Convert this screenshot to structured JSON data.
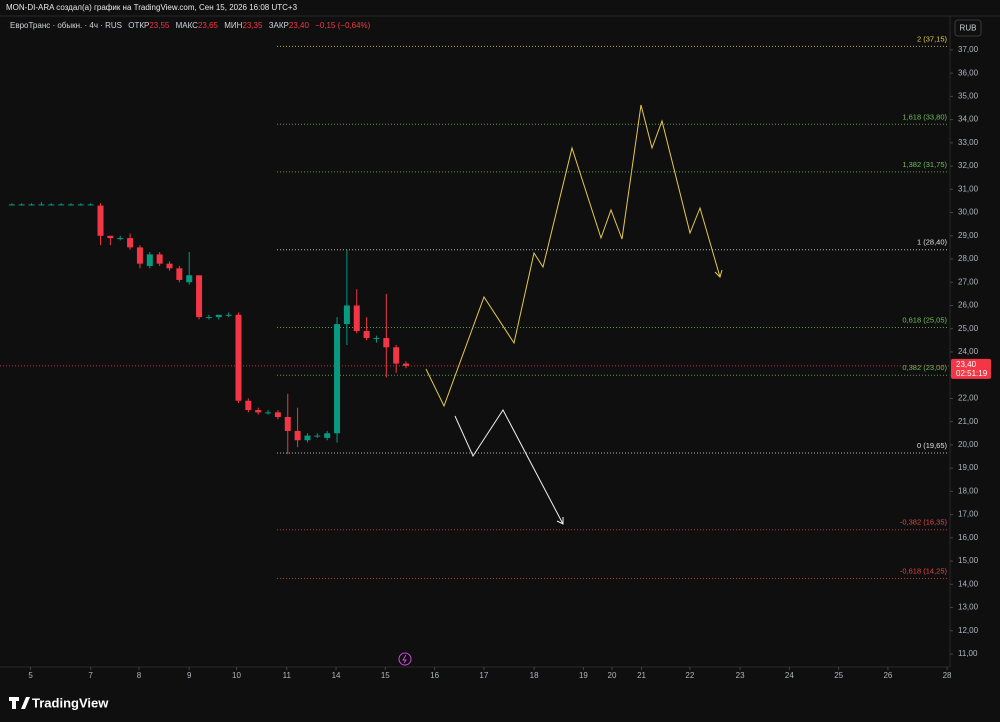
{
  "header": {
    "title": "MON-DI-ARA создал(а) график на TradingView.com, Сен 15, 2026 16:08 UTC+3"
  },
  "footer": {
    "brand": "TradingView"
  },
  "chart_data": {
    "type": "candlestick",
    "legend": {
      "symbol": "ЕвроТранс · обыкн. · 4ч · RUS",
      "open_label": "ОТКР",
      "open": "23,55",
      "high_label": "МАКС",
      "high": "23,65",
      "low_label": "МИН",
      "low": "23,35",
      "close_label": "ЗАКР",
      "close": "23,40",
      "change": "−0,15 (−0,64%)"
    },
    "currency": "RUB",
    "up_color": "#089981",
    "down_color": "#f23645",
    "open": [
      30.35,
      30.35,
      30.35,
      30.35,
      30.35,
      30.35,
      30.35,
      30.35,
      30.35,
      30.3,
      29.0,
      28.9,
      28.9,
      28.5,
      27.7,
      28.2,
      27.8,
      27.6,
      27.0,
      27.3,
      25.5,
      25.5,
      25.6,
      25.6,
      21.9,
      21.5,
      21.4,
      21.4,
      21.2,
      20.6,
      20.2,
      20.4,
      20.3,
      20.5,
      25.2,
      26.0,
      24.9,
      24.6,
      24.6,
      24.2,
      23.5
    ],
    "high": [
      30.4,
      30.4,
      30.4,
      30.45,
      30.4,
      30.4,
      30.4,
      30.4,
      30.4,
      30.4,
      29.0,
      29.0,
      29.1,
      28.6,
      28.3,
      28.3,
      27.9,
      27.7,
      28.3,
      27.3,
      25.6,
      25.6,
      25.7,
      25.7,
      22.0,
      21.6,
      21.5,
      21.5,
      22.2,
      21.6,
      20.5,
      20.5,
      20.6,
      25.5,
      28.4,
      26.7,
      25.5,
      24.7,
      26.5,
      24.3,
      23.6
    ],
    "low": [
      30.3,
      30.3,
      30.3,
      30.3,
      30.3,
      30.3,
      30.3,
      30.3,
      30.3,
      28.6,
      28.6,
      28.8,
      28.4,
      27.6,
      27.6,
      27.7,
      27.5,
      27.0,
      26.9,
      25.4,
      25.4,
      25.4,
      25.5,
      21.8,
      21.4,
      21.3,
      21.3,
      21.1,
      19.6,
      19.9,
      20.1,
      20.3,
      20.2,
      20.1,
      24.3,
      24.8,
      24.5,
      24.4,
      22.9,
      23.1,
      23.3
    ],
    "close": [
      30.35,
      30.35,
      30.35,
      30.35,
      30.35,
      30.35,
      30.35,
      30.35,
      30.35,
      29.0,
      28.9,
      28.9,
      28.5,
      27.8,
      28.2,
      27.8,
      27.6,
      27.1,
      27.3,
      25.5,
      25.5,
      25.6,
      25.6,
      21.9,
      21.5,
      21.4,
      21.4,
      21.2,
      20.6,
      20.2,
      20.4,
      20.4,
      20.5,
      25.2,
      26.0,
      24.9,
      24.6,
      24.6,
      24.2,
      23.5,
      23.4
    ],
    "last_price": {
      "value": 23.4,
      "label": "23,40"
    },
    "countdown": "02:51:19",
    "levels": [
      {
        "value": 37.15,
        "label": "2 (37,15)",
        "color": "#e6c84a"
      },
      {
        "value": 33.8,
        "label": "1,618 (33,80)",
        "color": "#6fbf5a"
      },
      {
        "value": 31.75,
        "label": "1,382 (31,75)",
        "color": "#6fbf5a"
      },
      {
        "value": 28.4,
        "label": "1 (28,40)",
        "color": "#e0e0e0"
      },
      {
        "value": 25.05,
        "label": "0,618 (25,05)",
        "color": "#6fbf5a"
      },
      {
        "value": 23.0,
        "label": "0,382 (23,00)",
        "color": "#6fbf5a"
      },
      {
        "value": 19.65,
        "label": "0 (19,65)",
        "color": "#e0e0e0"
      },
      {
        "value": 16.35,
        "label": "-0,382 (16,35)",
        "color": "#e04545"
      },
      {
        "value": 14.25,
        "label": "-0,618 (14,25)",
        "color": "#e04545"
      }
    ],
    "grid": false,
    "xlim": [
      -1.2,
      95.2
    ],
    "xticks": [
      {
        "value": 1.9,
        "label": "5"
      },
      {
        "value": 8.0,
        "label": "7"
      },
      {
        "value": 12.9,
        "label": "8"
      },
      {
        "value": 18.0,
        "label": "9"
      },
      {
        "value": 22.8,
        "label": "10"
      },
      {
        "value": 27.9,
        "label": "11"
      },
      {
        "value": 32.9,
        "label": "14"
      },
      {
        "value": 37.9,
        "label": "15"
      },
      {
        "value": 42.9,
        "label": "16"
      },
      {
        "value": 47.9,
        "label": "17"
      },
      {
        "value": 53.0,
        "label": "18"
      },
      {
        "value": 58.0,
        "label": "19"
      },
      {
        "value": 60.9,
        "label": "20"
      },
      {
        "value": 63.9,
        "label": "21"
      },
      {
        "value": 68.8,
        "label": "22"
      },
      {
        "value": 73.9,
        "label": "23"
      },
      {
        "value": 78.9,
        "label": "24"
      },
      {
        "value": 83.9,
        "label": "25"
      },
      {
        "value": 88.9,
        "label": "26"
      },
      {
        "value": 94.9,
        "label": "28"
      }
    ],
    "ylim": [
      10.44,
      38.46
    ],
    "yticks": [
      {
        "value": 11,
        "label": "11,00"
      },
      {
        "value": 12,
        "label": "12,00"
      },
      {
        "value": 13,
        "label": "13,00"
      },
      {
        "value": 14,
        "label": "14,00"
      },
      {
        "value": 15,
        "label": "15,00"
      },
      {
        "value": 16,
        "label": "16,00"
      },
      {
        "value": 17,
        "label": "17,00"
      },
      {
        "value": 18,
        "label": "18,00"
      },
      {
        "value": 19,
        "label": "19,00"
      },
      {
        "value": 20,
        "label": "20,00"
      },
      {
        "value": 21,
        "label": "21,00"
      },
      {
        "value": 22,
        "label": "22,00"
      },
      {
        "value": 23,
        "label": "23,00"
      },
      {
        "value": 24,
        "label": "24,00"
      },
      {
        "value": 25,
        "label": "25,00"
      },
      {
        "value": 26,
        "label": "26,00"
      },
      {
        "value": 27,
        "label": "27,00"
      },
      {
        "value": 28,
        "label": "28,00"
      },
      {
        "value": 29,
        "label": "29,00"
      },
      {
        "value": 30,
        "label": "30,00"
      },
      {
        "value": 31,
        "label": "31,00"
      },
      {
        "value": 32,
        "label": "32,00"
      },
      {
        "value": 33,
        "label": "33,00"
      },
      {
        "value": 34,
        "label": "34,00"
      },
      {
        "value": 35,
        "label": "35,00"
      },
      {
        "value": 36,
        "label": "36,00"
      },
      {
        "value": 37,
        "label": "37,00"
      }
    ]
  }
}
